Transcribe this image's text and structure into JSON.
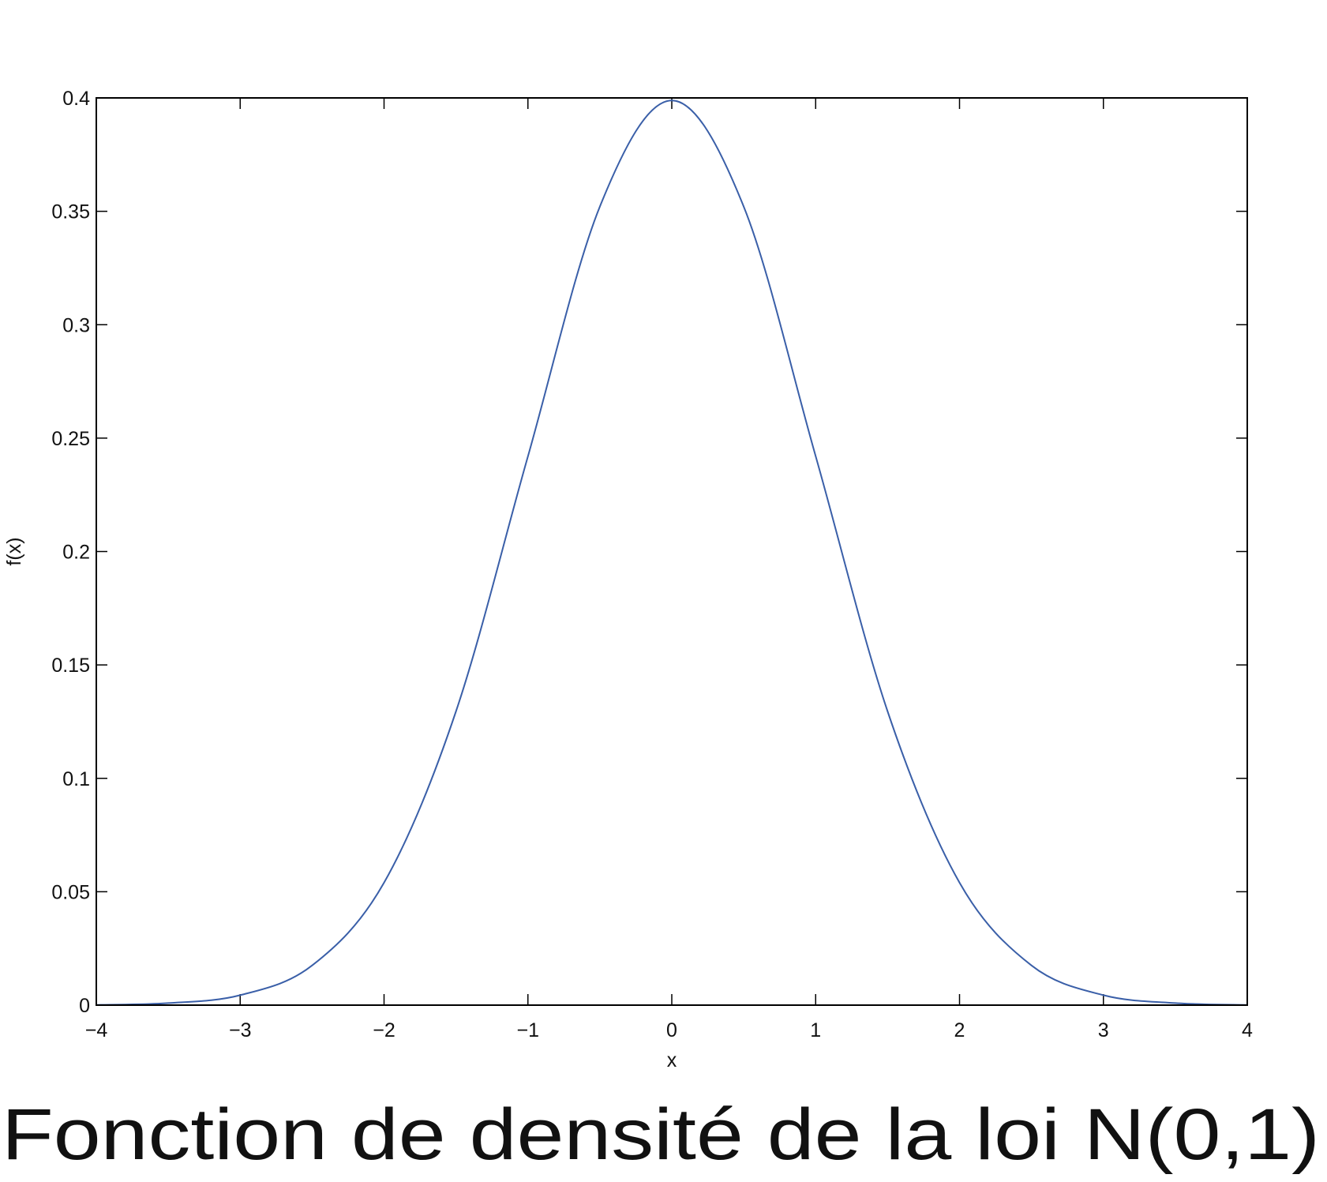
{
  "chart_data": {
    "type": "line",
    "title": "Fonction de densité de la loi N(0,1)",
    "xlabel": "x",
    "ylabel": "f(x)",
    "xlim": [
      -4,
      4
    ],
    "ylim": [
      0,
      0.4
    ],
    "x_ticks": [
      -4,
      -3,
      -2,
      -1,
      0,
      1,
      2,
      3,
      4
    ],
    "x_tick_labels": [
      "−4",
      "−3",
      "−2",
      "−1",
      "0",
      "1",
      "2",
      "3",
      "4"
    ],
    "y_ticks": [
      0,
      0.05,
      0.1,
      0.15,
      0.2,
      0.25,
      0.3,
      0.35,
      0.4
    ],
    "y_tick_labels": [
      "0",
      "0.05",
      "0.1",
      "0.15",
      "0.2",
      "0.25",
      "0.3",
      "0.35",
      "0.4"
    ],
    "grid": false,
    "series": [
      {
        "color": "#3a5fa8",
        "x": [
          -4,
          -3.5,
          -3,
          -2.5,
          -2,
          -1.5,
          -1,
          -0.5,
          0,
          0.5,
          1,
          1.5,
          2,
          2.5,
          3,
          3.5,
          4
        ],
        "y": [
          0.0001,
          0.0009,
          0.0044,
          0.0175,
          0.054,
          0.1295,
          0.242,
          0.3521,
          0.3989,
          0.3521,
          0.242,
          0.1295,
          0.054,
          0.0175,
          0.0044,
          0.0009,
          0.0001
        ]
      }
    ]
  }
}
